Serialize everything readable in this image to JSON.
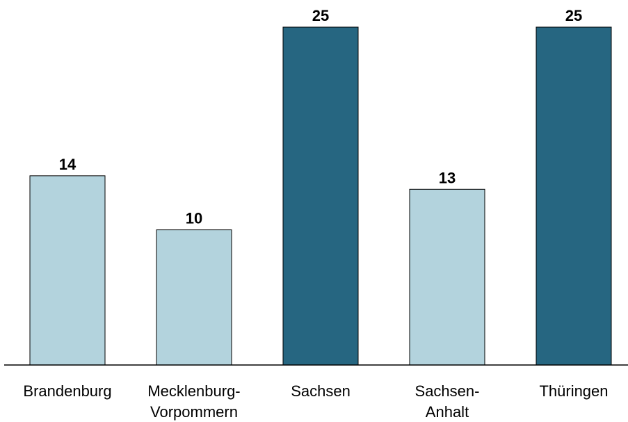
{
  "chart_data": {
    "type": "bar",
    "title": "",
    "xlabel": "",
    "ylabel": "",
    "ylim": [
      0,
      25
    ],
    "grid": false,
    "legend": "none",
    "categories": [
      [
        "Brandenburg"
      ],
      [
        "Mecklenburg-",
        "Vorpommern"
      ],
      [
        "Sachsen"
      ],
      [
        "Sachsen-",
        "Anhalt"
      ],
      [
        "Thüringen"
      ]
    ],
    "values": [
      14,
      10,
      25,
      13,
      25
    ],
    "colors": [
      "#b3d3dd",
      "#b3d3dd",
      "#266681",
      "#b3d3dd",
      "#266681"
    ]
  }
}
